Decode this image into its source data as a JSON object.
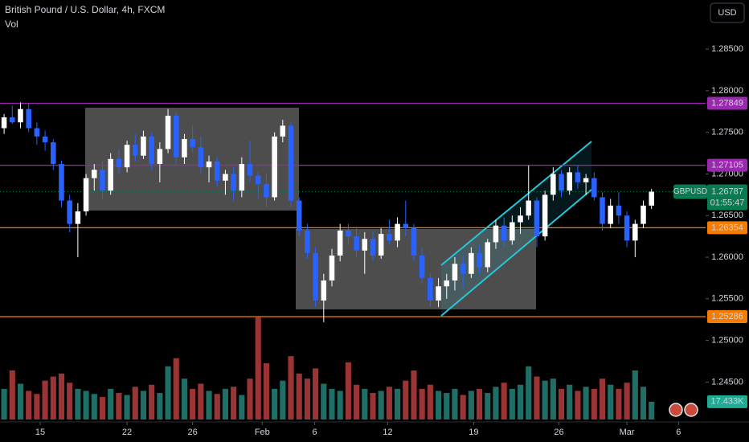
{
  "header": {
    "title": "British Pound / U.S. Dollar, 4h, FXCM",
    "indicator": "Vol",
    "currency_button": "USD"
  },
  "chart_data": {
    "type": "candlestick",
    "up_color": "#ffffff",
    "down_color": "#2962ff",
    "volume_up_color": "#1f6f66",
    "volume_down_color": "#9b3434",
    "xlim": [
      -0.5,
      85.6
    ],
    "ylim": [
      1.2405,
      1.2909
    ],
    "volume_lim": [
      0,
      140
    ],
    "grid": false,
    "xticks": [
      {
        "value": 4.4,
        "label": "15"
      },
      {
        "value": 15,
        "label": "22"
      },
      {
        "value": 23,
        "label": "26"
      },
      {
        "value": 31.5,
        "label": "Feb"
      },
      {
        "value": 37.9,
        "label": "6"
      },
      {
        "value": 46.8,
        "label": "12"
      },
      {
        "value": 57.3,
        "label": "19"
      },
      {
        "value": 67.7,
        "label": "26"
      },
      {
        "value": 76,
        "label": "Mar"
      },
      {
        "value": 82.3,
        "label": "6"
      }
    ],
    "yticks": [
      {
        "value": 1.285,
        "label": "1.28500"
      },
      {
        "value": 1.28,
        "label": "1.28000"
      },
      {
        "value": 1.275,
        "label": "1.27500"
      },
      {
        "value": 1.27,
        "label": "1.27000"
      },
      {
        "value": 1.265,
        "label": "1.26500"
      },
      {
        "value": 1.26,
        "label": "1.26000"
      },
      {
        "value": 1.255,
        "label": "1.25500"
      },
      {
        "value": 1.25,
        "label": "1.25000"
      },
      {
        "value": 1.245,
        "label": "1.24500"
      }
    ],
    "levels": [
      {
        "value": 1.27849,
        "color": "#9c27b0"
      },
      {
        "value": 1.27105,
        "color": "#9c27b0"
      },
      {
        "value": 1.26354,
        "color": "#f57c00"
      },
      {
        "value": 1.25286,
        "color": "#f57c00"
      }
    ],
    "current": {
      "symbol": "GBPUSD",
      "value": 1.26787,
      "countdown": "01:55:47",
      "color": "#0a7a50"
    },
    "ohlc": [
      [
        1.2755,
        1.2772,
        1.2748,
        1.2768
      ],
      [
        1.2768,
        1.2782,
        1.276,
        1.2762
      ],
      [
        1.2762,
        1.2786,
        1.2755,
        1.2778
      ],
      [
        1.2778,
        1.2785,
        1.275,
        1.2755
      ],
      [
        1.2755,
        1.2762,
        1.2735,
        1.2745
      ],
      [
        1.2745,
        1.2752,
        1.2728,
        1.2738
      ],
      [
        1.2738,
        1.2742,
        1.2705,
        1.2712
      ],
      [
        1.2712,
        1.2716,
        1.266,
        1.2668
      ],
      [
        1.2668,
        1.2675,
        1.263,
        1.264
      ],
      [
        1.264,
        1.2665,
        1.26,
        1.2655
      ],
      [
        1.2655,
        1.27,
        1.265,
        1.2695
      ],
      [
        1.2695,
        1.2712,
        1.268,
        1.2705
      ],
      [
        1.2705,
        1.2715,
        1.267,
        1.268
      ],
      [
        1.268,
        1.2725,
        1.2675,
        1.2718
      ],
      [
        1.2718,
        1.273,
        1.27,
        1.2708
      ],
      [
        1.2708,
        1.274,
        1.2702,
        1.2735
      ],
      [
        1.2735,
        1.2748,
        1.2715,
        1.2722
      ],
      [
        1.2722,
        1.2752,
        1.2718,
        1.2745
      ],
      [
        1.2745,
        1.275,
        1.2705,
        1.2712
      ],
      [
        1.2712,
        1.2738,
        1.269,
        1.273
      ],
      [
        1.273,
        1.2778,
        1.2725,
        1.277
      ],
      [
        1.277,
        1.2775,
        1.2712,
        1.272
      ],
      [
        1.272,
        1.2748,
        1.2712,
        1.2742
      ],
      [
        1.2742,
        1.2758,
        1.2725,
        1.2732
      ],
      [
        1.2732,
        1.2745,
        1.27,
        1.2708
      ],
      [
        1.2708,
        1.2722,
        1.269,
        1.2715
      ],
      [
        1.2715,
        1.272,
        1.2685,
        1.2692
      ],
      [
        1.2692,
        1.2705,
        1.2675,
        1.27
      ],
      [
        1.27,
        1.2708,
        1.2668,
        1.268
      ],
      [
        1.268,
        1.272,
        1.2672,
        1.2712
      ],
      [
        1.2712,
        1.274,
        1.269,
        1.2698
      ],
      [
        1.2698,
        1.2702,
        1.267,
        1.2688
      ],
      [
        1.2688,
        1.27,
        1.266,
        1.2672
      ],
      [
        1.2672,
        1.275,
        1.2668,
        1.2745
      ],
      [
        1.2745,
        1.2765,
        1.2738,
        1.2758
      ],
      [
        1.2758,
        1.2762,
        1.266,
        1.2668
      ],
      [
        1.2668,
        1.2672,
        1.2625,
        1.2632
      ],
      [
        1.2632,
        1.264,
        1.2598,
        1.2605
      ],
      [
        1.2605,
        1.2612,
        1.254,
        1.2548
      ],
      [
        1.2548,
        1.258,
        1.2522,
        1.2572
      ],
      [
        1.2572,
        1.261,
        1.2565,
        1.2602
      ],
      [
        1.2602,
        1.264,
        1.2595,
        1.2632
      ],
      [
        1.2632,
        1.264,
        1.2615,
        1.2625
      ],
      [
        1.2625,
        1.2635,
        1.26,
        1.2608
      ],
      [
        1.2608,
        1.263,
        1.258,
        1.2622
      ],
      [
        1.2622,
        1.2632,
        1.2595,
        1.2602
      ],
      [
        1.2602,
        1.2635,
        1.2598,
        1.2628
      ],
      [
        1.2628,
        1.2645,
        1.2615,
        1.262
      ],
      [
        1.262,
        1.2648,
        1.2612,
        1.264
      ],
      [
        1.264,
        1.2668,
        1.2625,
        1.2635
      ],
      [
        1.2635,
        1.264,
        1.2595,
        1.2602
      ],
      [
        1.2602,
        1.2612,
        1.2568,
        1.2575
      ],
      [
        1.2575,
        1.258,
        1.254,
        1.2548
      ],
      [
        1.2548,
        1.2575,
        1.254,
        1.2565
      ],
      [
        1.2565,
        1.258,
        1.255,
        1.2572
      ],
      [
        1.2572,
        1.26,
        1.256,
        1.2592
      ],
      [
        1.2592,
        1.2602,
        1.2562,
        1.258
      ],
      [
        1.258,
        1.2612,
        1.2575,
        1.2605
      ],
      [
        1.2605,
        1.2615,
        1.258,
        1.2588
      ],
      [
        1.2588,
        1.2622,
        1.2582,
        1.2618
      ],
      [
        1.2618,
        1.2645,
        1.261,
        1.2638
      ],
      [
        1.2638,
        1.2648,
        1.2612,
        1.262
      ],
      [
        1.262,
        1.265,
        1.2615,
        1.2642
      ],
      [
        1.2642,
        1.266,
        1.2628,
        1.265
      ],
      [
        1.265,
        1.271,
        1.2645,
        1.2668
      ],
      [
        1.2668,
        1.2672,
        1.2612,
        1.2625
      ],
      [
        1.2625,
        1.268,
        1.262,
        1.2675
      ],
      [
        1.2675,
        1.2708,
        1.2668,
        1.27
      ],
      [
        1.27,
        1.2705,
        1.2672,
        1.268
      ],
      [
        1.268,
        1.2708,
        1.2675,
        1.2702
      ],
      [
        1.2702,
        1.271,
        1.2682,
        1.269
      ],
      [
        1.269,
        1.27,
        1.2675,
        1.2695
      ],
      [
        1.2695,
        1.2702,
        1.2668,
        1.2672
      ],
      [
        1.2672,
        1.2678,
        1.2632,
        1.264
      ],
      [
        1.264,
        1.267,
        1.2635,
        1.2662
      ],
      [
        1.2662,
        1.2678,
        1.264,
        1.265
      ],
      [
        1.265,
        1.2655,
        1.2612,
        1.262
      ],
      [
        1.262,
        1.2645,
        1.26,
        1.264
      ],
      [
        1.264,
        1.2668,
        1.2635,
        1.2662
      ],
      [
        1.2662,
        1.2682,
        1.2658,
        1.26787
      ]
    ],
    "volume": {
      "values": [
        30,
        48,
        35,
        28,
        25,
        38,
        42,
        45,
        36,
        30,
        28,
        25,
        22,
        30,
        26,
        24,
        32,
        28,
        34,
        26,
        52,
        60,
        40,
        30,
        35,
        28,
        25,
        30,
        32,
        24,
        40,
        100,
        55,
        30,
        38,
        62,
        45,
        40,
        50,
        35,
        30,
        28,
        56,
        34,
        30,
        26,
        28,
        32,
        30,
        38,
        48,
        30,
        34,
        28,
        26,
        30,
        24,
        28,
        30,
        26,
        32,
        36,
        30,
        34,
        52,
        42,
        38,
        40,
        30,
        34,
        28,
        32,
        30,
        40,
        34,
        30,
        36,
        48,
        32,
        17.433
      ],
      "last_value_label": "17.433K"
    }
  }
}
